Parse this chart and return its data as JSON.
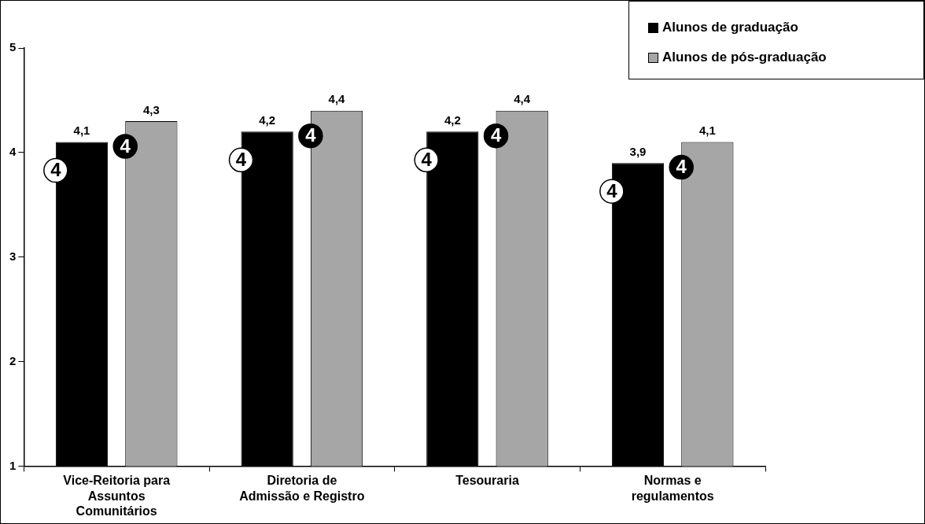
{
  "chart_data": {
    "type": "bar",
    "categories": [
      "Vice-Reitoria para Assuntos Comunitários",
      "Diretoria de Admissão e Registro",
      "Tesouraria",
      "Normas e regulamentos"
    ],
    "series": [
      {
        "name": "Alunos de graduação",
        "color": "#000000",
        "values": [
          4.1,
          4.2,
          4.2,
          3.9
        ],
        "value_labels": [
          "4,1",
          "4,2",
          "4,2",
          "3,9"
        ]
      },
      {
        "name": "Alunos de pós-graduação",
        "color": "#a6a6a6",
        "values": [
          4.3,
          4.4,
          4.4,
          4.1
        ],
        "value_labels": [
          "4,3",
          "4,4",
          "4,4",
          "4,1"
        ]
      }
    ],
    "ylim": [
      1,
      5
    ],
    "yticks": [
      1,
      2,
      3,
      4,
      5
    ],
    "grid": false,
    "legend": "top right",
    "annotations": [
      "4",
      "4",
      "4",
      "4",
      "4",
      "4",
      "4",
      "4"
    ]
  }
}
